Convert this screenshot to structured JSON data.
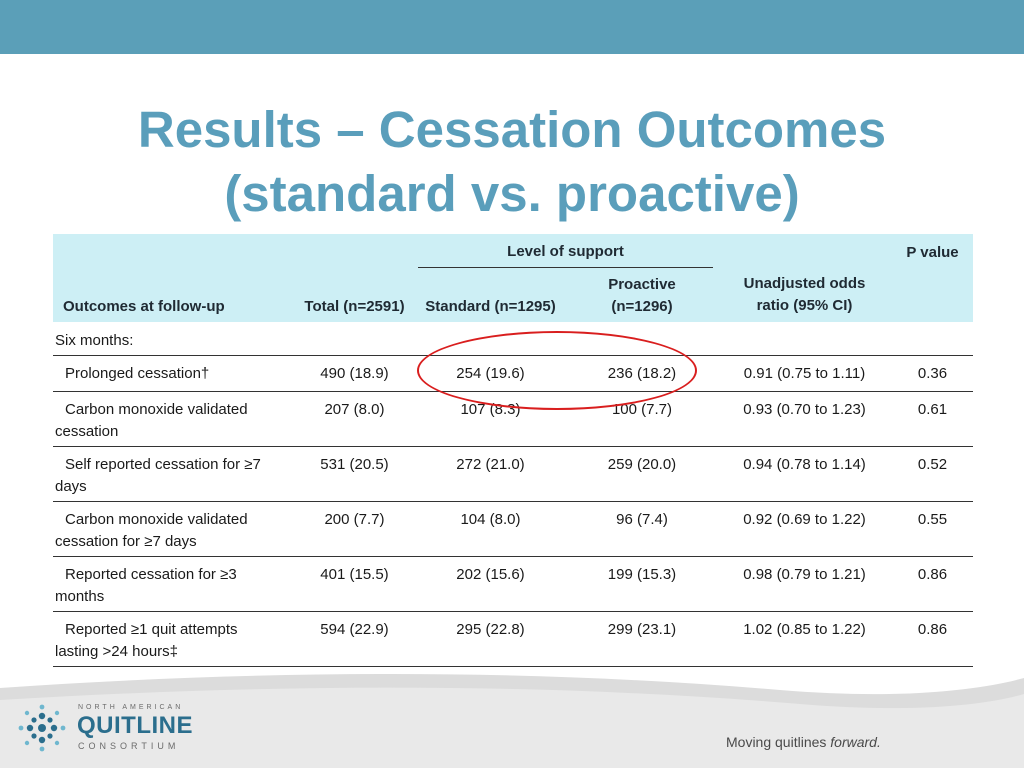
{
  "title": {
    "line1": "Results – Cessation Outcomes",
    "line2": "(standard vs. proactive)"
  },
  "table": {
    "header": {
      "level_of_support": "Level of support",
      "p_value": "P value",
      "outcomes": "Outcomes at follow-up",
      "total": "Total (n=2591)",
      "standard": "Standard (n=1295)",
      "proactive_line1": "Proactive",
      "proactive_line2": "(n=1296)",
      "odds_line1": "Unadjusted odds",
      "odds_line2": "ratio (95% CI)"
    },
    "section_label": "Six months:",
    "rows": [
      {
        "label1": "Prolonged cessation†",
        "label2": "",
        "total": "490 (18.9)",
        "standard": "254 (19.6)",
        "proactive": "236 (18.2)",
        "odds": "0.91 (0.75 to 1.11)",
        "p": "0.36"
      },
      {
        "label1": "Carbon monoxide validated",
        "label2": "cessation",
        "total": "207 (8.0)",
        "standard": "107 (8.3)",
        "proactive": "100 (7.7)",
        "odds": "0.93 (0.70 to 1.23)",
        "p": "0.61"
      },
      {
        "label1": "Self reported cessation for ≥7",
        "label2": "days",
        "total": "531 (20.5)",
        "standard": "272 (21.0)",
        "proactive": "259 (20.0)",
        "odds": "0.94 (0.78 to 1.14)",
        "p": "0.52"
      },
      {
        "label1": "Carbon monoxide validated",
        "label2": "cessation for ≥7 days",
        "total": "200 (7.7)",
        "standard": "104 (8.0)",
        "proactive": "96 (7.4)",
        "odds": "0.92 (0.69 to 1.22)",
        "p": "0.55"
      },
      {
        "label1": "Reported cessation for ≥3",
        "label2": "months",
        "total": "401 (15.5)",
        "standard": "202 (15.6)",
        "proactive": "199 (15.3)",
        "odds": "0.98 (0.79 to 1.21)",
        "p": "0.86"
      },
      {
        "label1": "Reported ≥1 quit attempts",
        "label2": "lasting >24 hours‡",
        "total": "594 (22.9)",
        "standard": "295 (22.8)",
        "proactive": "299 (23.1)",
        "odds": "1.02 (0.85 to 1.22)",
        "p": "0.86"
      }
    ]
  },
  "footer": {
    "logo_line1": "NORTH AMERICAN",
    "logo_line2": "QUITLINE",
    "logo_line3": "CONSORTIUM",
    "tagline_start": "Moving quitlines ",
    "tagline_emph": "forward."
  },
  "colors": {
    "band": "#5b9fb8",
    "title": "#5a9ebb",
    "header_fill": "#cdeff5",
    "highlight_circle": "#d91e1e",
    "logo_blue": "#2b6e8d"
  }
}
